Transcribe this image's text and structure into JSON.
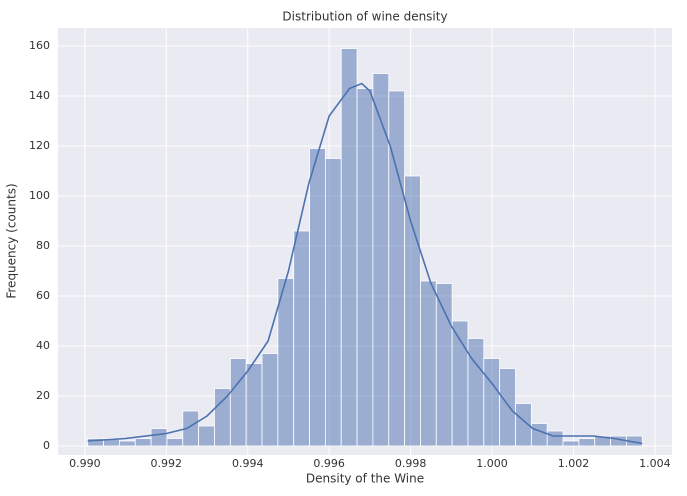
{
  "chart_data": {
    "type": "histogram",
    "title": "Distribution of wine density",
    "xlabel": "Density of the Wine",
    "ylabel": "Frequency (counts)",
    "bins": [
      0.99007,
      0.990459,
      0.990848,
      0.991237,
      0.991627,
      0.992016,
      0.992405,
      0.992794,
      0.993183,
      0.993572,
      0.993961,
      0.994351,
      0.99474,
      0.995129,
      0.995518,
      0.995907,
      0.996296,
      0.996685,
      0.997074,
      0.997464,
      0.997853,
      0.998242,
      0.998631,
      0.99902,
      0.999409,
      0.999798,
      1.000187,
      1.000577,
      1.000966,
      1.001355,
      1.001744,
      1.002133,
      1.002522,
      1.002911,
      1.003301,
      1.00369
    ],
    "values": [
      3,
      3,
      2,
      3,
      7,
      3,
      14,
      8,
      23,
      35,
      33,
      37,
      67,
      86,
      119,
      115,
      159,
      143,
      149,
      142,
      108,
      66,
      65,
      50,
      43,
      35,
      31,
      17,
      9,
      6,
      2,
      3,
      4,
      4,
      4
    ],
    "color": "#4c72b0",
    "kde": {
      "color": "#4c72b0",
      "x": [
        0.99007,
        0.991,
        0.992,
        0.9925,
        0.993,
        0.9935,
        0.994,
        0.9945,
        0.995,
        0.9955,
        0.996,
        0.9965,
        0.9968,
        0.997,
        0.9975,
        0.998,
        0.9985,
        0.999,
        0.9995,
        1.0,
        1.0005,
        1.001,
        1.0015,
        1.002,
        1.0025,
        1.003,
        1.00369
      ],
      "values": [
        2,
        3,
        5,
        7,
        12,
        20,
        30,
        42,
        70,
        105,
        132,
        143,
        145,
        142,
        120,
        90,
        65,
        48,
        35,
        25,
        14,
        7,
        4,
        4,
        4,
        3,
        1
      ]
    },
    "xlim": [
      0.98934,
      1.00442
    ],
    "ylim": [
      -3.6,
      167.2
    ],
    "xticks": [
      {
        "value": 0.99,
        "label": "0.990"
      },
      {
        "value": 0.992,
        "label": "0.992"
      },
      {
        "value": 0.994,
        "label": "0.994"
      },
      {
        "value": 0.996,
        "label": "0.996"
      },
      {
        "value": 0.998,
        "label": "0.998"
      },
      {
        "value": 1.0,
        "label": "1.000"
      },
      {
        "value": 1.002,
        "label": "1.002"
      },
      {
        "value": 1.004,
        "label": "1.004"
      }
    ],
    "yticks": [
      0,
      20,
      40,
      60,
      80,
      100,
      120,
      140,
      160
    ],
    "grid": true
  }
}
